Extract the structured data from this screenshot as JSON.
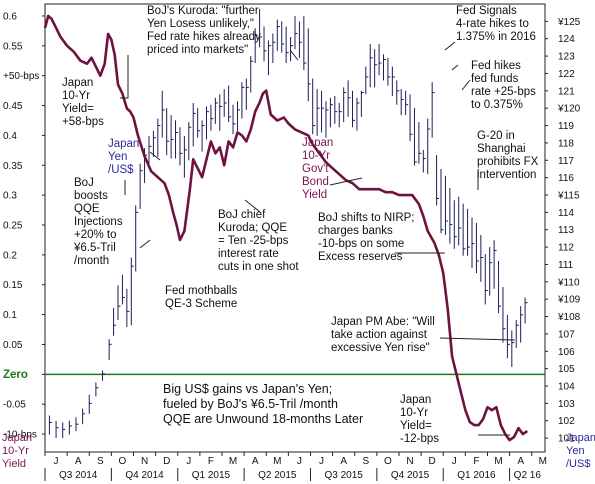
{
  "chart_data": {
    "type": "line",
    "left_axis": {
      "title_lines": [
        "Japan",
        "10-Yr",
        "Yield"
      ],
      "range": [
        -0.13,
        0.62
      ],
      "ticks": [
        {
          "v": 0.6,
          "t": "0.6"
        },
        {
          "v": 0.55,
          "t": "0.55"
        },
        {
          "v": 0.5,
          "t": "+50-bps"
        },
        {
          "v": 0.45,
          "t": "0.45"
        },
        {
          "v": 0.4,
          "t": "0.4"
        },
        {
          "v": 0.35,
          "t": "0.35"
        },
        {
          "v": 0.3,
          "t": "0.3"
        },
        {
          "v": 0.25,
          "t": "0.25"
        },
        {
          "v": 0.2,
          "t": "0.2"
        },
        {
          "v": 0.15,
          "t": "0.15"
        },
        {
          "v": 0.1,
          "t": "0.1"
        },
        {
          "v": 0.05,
          "t": "0.05"
        },
        {
          "v": 0.0,
          "t": "Zero"
        },
        {
          "v": -0.05,
          "t": "-0.05"
        },
        {
          "v": -0.1,
          "t": "-10-bps"
        }
      ],
      "zero_label": "Zero",
      "zero_color": "#1a7a1a"
    },
    "right_axis": {
      "title_lines": [
        "Japan",
        "Yen",
        "/US$"
      ],
      "range": [
        100.2,
        126.0
      ],
      "ticks": [
        {
          "v": 125,
          "t": "¥125"
        },
        {
          "v": 124,
          "t": "124"
        },
        {
          "v": 123,
          "t": "123"
        },
        {
          "v": 122,
          "t": "122"
        },
        {
          "v": 121,
          "t": "121"
        },
        {
          "v": 120,
          "t": "¥120"
        },
        {
          "v": 119,
          "t": "119"
        },
        {
          "v": 118,
          "t": "118"
        },
        {
          "v": 117,
          "t": "117"
        },
        {
          "v": 116,
          "t": "116"
        },
        {
          "v": 115,
          "t": "¥115"
        },
        {
          "v": 114,
          "t": "114"
        },
        {
          "v": 113,
          "t": "113"
        },
        {
          "v": 112,
          "t": "112"
        },
        {
          "v": 111,
          "t": "111"
        },
        {
          "v": 110,
          "t": "¥110"
        },
        {
          "v": 109,
          "t": "¥109"
        },
        {
          "v": 108,
          "t": "¥108"
        },
        {
          "v": 107,
          "t": "107"
        },
        {
          "v": 106,
          "t": "106"
        },
        {
          "v": 105,
          "t": "105"
        },
        {
          "v": 104,
          "t": "104"
        },
        {
          "v": 103,
          "t": "103"
        },
        {
          "v": 102,
          "t": "102"
        },
        {
          "v": 101,
          "t": "101"
        }
      ]
    },
    "months": [
      "J",
      "A",
      "S",
      "O",
      "N",
      "D",
      "J",
      "F",
      "M",
      "A",
      "M",
      "J",
      "J",
      "A",
      "S",
      "O",
      "N",
      "D",
      "J",
      "F",
      "M",
      "A",
      "M"
    ],
    "quarters": [
      {
        "label": "Q3 2014",
        "start": 0,
        "end": 3
      },
      {
        "label": "Q4 2014",
        "start": 3,
        "end": 6
      },
      {
        "label": "Q1 2015",
        "start": 6,
        "end": 9
      },
      {
        "label": "Q2 2015",
        "start": 9,
        "end": 12
      },
      {
        "label": "Q3 2015",
        "start": 12,
        "end": 15
      },
      {
        "label": "Q4 2015",
        "start": 15,
        "end": 18
      },
      {
        "label": "Q1 2016",
        "start": 18,
        "end": 21
      },
      {
        "label": "Q2 16",
        "start": 21,
        "end": 22.6
      }
    ],
    "series": [
      {
        "name": "Japan 10-Yr Gov't Bond Yield",
        "axis": "left",
        "color": "#6e1240",
        "x": [
          0,
          0.15,
          0.3,
          0.5,
          0.7,
          1.0,
          1.3,
          1.6,
          1.9,
          2.1,
          2.3,
          2.5,
          2.7,
          2.85,
          3.0,
          3.15,
          3.3,
          3.5,
          3.7,
          3.85,
          4.0,
          4.2,
          4.5,
          4.8,
          5.1,
          5.4,
          5.6,
          5.8,
          5.95,
          6.1,
          6.3,
          6.55,
          6.7,
          6.9,
          7.1,
          7.3,
          7.5,
          7.7,
          7.9,
          8.1,
          8.3,
          8.5,
          8.7,
          8.9,
          9.1,
          9.3,
          9.5,
          9.7,
          9.85,
          10.0,
          10.2,
          10.5,
          10.8,
          11.0,
          11.3,
          11.6,
          11.9,
          12.1,
          12.4,
          12.7,
          13.0,
          13.3,
          13.6,
          13.9,
          14.2,
          14.5,
          14.8,
          15.1,
          15.4,
          15.7,
          16.0,
          16.3,
          16.6,
          16.9,
          17.1,
          17.3,
          17.6,
          17.8,
          18.0,
          18.2,
          18.4,
          18.6,
          18.8,
          19.0,
          19.2,
          19.4,
          19.6,
          19.8,
          20.0,
          20.2,
          20.4,
          20.6,
          20.8,
          21.0,
          21.2,
          21.4,
          21.6,
          21.8
        ],
        "y": [
          0.58,
          0.6,
          0.595,
          0.58,
          0.565,
          0.55,
          0.54,
          0.525,
          0.52,
          0.53,
          0.515,
          0.5,
          0.52,
          0.57,
          0.56,
          0.535,
          0.485,
          0.47,
          0.445,
          0.44,
          0.43,
          0.4,
          0.365,
          0.34,
          0.33,
          0.32,
          0.3,
          0.27,
          0.25,
          0.225,
          0.24,
          0.31,
          0.36,
          0.345,
          0.33,
          0.36,
          0.39,
          0.37,
          0.38,
          0.35,
          0.39,
          0.38,
          0.405,
          0.4,
          0.39,
          0.41,
          0.44,
          0.455,
          0.47,
          0.475,
          0.435,
          0.425,
          0.43,
          0.42,
          0.41,
          0.405,
          0.4,
          0.385,
          0.37,
          0.355,
          0.345,
          0.335,
          0.325,
          0.32,
          0.31,
          0.31,
          0.31,
          0.31,
          0.305,
          0.305,
          0.3,
          0.3,
          0.3,
          0.285,
          0.265,
          0.24,
          0.22,
          0.2,
          0.17,
          0.11,
          0.03,
          0.0,
          -0.03,
          -0.06,
          -0.08,
          -0.085,
          -0.085,
          -0.075,
          -0.055,
          -0.06,
          -0.055,
          -0.085,
          -0.1,
          -0.11,
          -0.105,
          -0.09,
          -0.1,
          -0.095
        ]
      },
      {
        "name": "Yen/US$",
        "axis": "right",
        "type": "hlc",
        "color": "#1c1c5a",
        "x": [
          0.2,
          0.5,
          0.8,
          1.1,
          1.4,
          1.7,
          2.0,
          2.3,
          2.6,
          2.9,
          3.1,
          3.3,
          3.5,
          3.7,
          3.9,
          4.1,
          4.3,
          4.5,
          4.7,
          4.9,
          5.1,
          5.3,
          5.5,
          5.7,
          5.9,
          6.1,
          6.3,
          6.5,
          6.7,
          6.9,
          7.1,
          7.3,
          7.5,
          7.7,
          7.9,
          8.1,
          8.3,
          8.5,
          8.7,
          8.9,
          9.1,
          9.3,
          9.5,
          9.7,
          9.9,
          10.1,
          10.3,
          10.5,
          10.7,
          10.9,
          11.1,
          11.3,
          11.5,
          11.7,
          11.9,
          12.1,
          12.3,
          12.5,
          12.7,
          12.9,
          13.1,
          13.3,
          13.5,
          13.7,
          13.9,
          14.1,
          14.3,
          14.5,
          14.7,
          14.9,
          15.1,
          15.3,
          15.5,
          15.7,
          15.9,
          16.1,
          16.3,
          16.5,
          16.7,
          16.9,
          17.1,
          17.3,
          17.5,
          17.7,
          17.9,
          18.1,
          18.3,
          18.5,
          18.7,
          18.9,
          19.1,
          19.3,
          19.5,
          19.7,
          19.9,
          20.1,
          20.3,
          20.5,
          20.7,
          20.9,
          21.1,
          21.3,
          21.5,
          21.7
        ],
        "high": [
          102.3,
          102.0,
          101.9,
          102.0,
          102.2,
          102.7,
          103.5,
          104.2,
          104.9,
          106.7,
          108.5,
          109.8,
          110.4,
          109.6,
          111.4,
          114.4,
          116.8,
          117.7,
          118.4,
          118.7,
          119.4,
          121.0,
          120.0,
          119.6,
          119.3,
          118.9,
          118.4,
          119.2,
          120.3,
          120.0,
          119.3,
          120.1,
          120.2,
          120.6,
          120.8,
          121.1,
          121.3,
          120.2,
          120.4,
          121.5,
          121.7,
          123.0,
          124.6,
          125.7,
          124.7,
          123.9,
          124.3,
          125.1,
          125.0,
          124.7,
          124.1,
          125.3,
          125.0,
          125.3,
          124.6,
          121.7,
          121.1,
          121.0,
          120.4,
          120.6,
          120.7,
          120.3,
          121.2,
          121.6,
          121.0,
          120.6,
          121.0,
          122.4,
          123.7,
          123.4,
          123.7,
          123.1,
          122.9,
          122.4,
          121.6,
          121.1,
          121.0,
          120.8,
          120.0,
          119.2,
          117.6,
          119.4,
          121.5,
          117.3,
          116.5,
          116.1,
          115.4,
          114.7,
          114.9,
          114.5,
          114.2,
          113.7,
          113.4,
          112.7,
          111.6,
          112.0,
          112.4,
          111.2,
          109.7,
          108.1,
          107.2,
          107.8,
          108.6,
          109.1
        ],
        "low": [
          101.2,
          101.0,
          101.0,
          101.2,
          101.4,
          101.8,
          102.4,
          103.4,
          104.3,
          105.5,
          106.9,
          107.8,
          108.7,
          107.4,
          107.5,
          110.6,
          114.2,
          115.7,
          116.6,
          117.2,
          117.2,
          118.3,
          117.3,
          117.1,
          117.1,
          116.7,
          116.0,
          117.0,
          117.8,
          118.3,
          117.5,
          118.2,
          118.7,
          119.1,
          118.7,
          119.5,
          119.2,
          118.5,
          118.7,
          119.4,
          119.9,
          120.9,
          122.6,
          123.5,
          122.7,
          121.9,
          122.6,
          123.3,
          123.2,
          122.6,
          122.7,
          123.4,
          122.9,
          122.2,
          120.4,
          118.5,
          118.4,
          118.6,
          118.3,
          118.9,
          119.1,
          118.9,
          119.2,
          119.5,
          118.9,
          118.7,
          119.5,
          120.8,
          121.2,
          121.2,
          121.9,
          121.6,
          121.3,
          120.7,
          120.2,
          119.6,
          119.6,
          118.1,
          116.7,
          116.8,
          116.3,
          116.2,
          118.3,
          114.4,
          112.8,
          112.7,
          112.2,
          111.9,
          112.1,
          111.5,
          111.5,
          110.8,
          110.5,
          110.0,
          108.7,
          109.2,
          109.6,
          108.2,
          106.5,
          105.6,
          105.1,
          106.2,
          106.5,
          107.6
        ],
        "close": [
          101.9,
          101.6,
          101.5,
          101.7,
          101.8,
          102.4,
          103.0,
          103.9,
          104.7,
          106.4,
          107.5,
          108.6,
          109.1,
          108.3,
          110.9,
          114.0,
          116.4,
          117.3,
          117.8,
          118.3,
          119.0,
          119.9,
          118.1,
          118.2,
          118.6,
          117.4,
          117.6,
          118.9,
          119.7,
          118.7,
          119.0,
          119.8,
          119.4,
          120.3,
          120.1,
          120.3,
          119.5,
          119.1,
          119.9,
          121.2,
          121.2,
          122.7,
          124.2,
          124.1,
          123.3,
          123.6,
          123.8,
          124.7,
          123.7,
          123.2,
          123.6,
          124.3,
          123.8,
          122.6,
          121.4,
          119.0,
          120.0,
          120.0,
          119.9,
          120.2,
          119.8,
          119.8,
          120.9,
          120.6,
          119.3,
          120.3,
          120.9,
          121.8,
          122.9,
          122.5,
          122.6,
          122.8,
          121.8,
          121.8,
          121.0,
          120.5,
          120.2,
          118.5,
          116.9,
          117.4,
          117.1,
          118.8,
          120.9,
          114.8,
          113.0,
          113.5,
          113.3,
          112.6,
          113.1,
          111.9,
          112.0,
          112.2,
          111.2,
          111.4,
          109.5,
          111.1,
          111.8,
          108.6,
          107.3,
          106.4,
          106.5,
          107.5,
          108.1,
          108.8
        ]
      }
    ],
    "annotations": [
      {
        "id": "kuroda1",
        "lines": [
          "BoJ's Kuroda: \"further",
          "Yen Losess unlikely,\"",
          "Fed rate hikes already",
          "priced into markets\""
        ],
        "style": "ann"
      },
      {
        "id": "fed-signals",
        "lines": [
          "Fed Signals",
          "4-rate hikes to",
          "1.375% in 2016"
        ],
        "style": "ann"
      },
      {
        "id": "fed-hikes",
        "lines": [
          "Fed hikes",
          "fed funds",
          "rate +25-bps",
          "to 0.375%"
        ],
        "style": "ann"
      },
      {
        "id": "jp10yr-a",
        "lines": [
          "Japan",
          "10-Yr",
          "Yield=",
          "+58-bps"
        ],
        "style": "ann"
      },
      {
        "id": "yen-label",
        "lines": [
          "Japan",
          "Yen",
          "/US$"
        ],
        "style": "ann-blue"
      },
      {
        "id": "jgb-label",
        "lines": [
          "Japan",
          "10-Yr",
          "Gov't",
          "Bond",
          "Yield"
        ],
        "style": "ann-maroon"
      },
      {
        "id": "g20",
        "lines": [
          "G-20 in",
          "Shanghai",
          "prohibits FX",
          "intervention"
        ],
        "style": "ann"
      },
      {
        "id": "boj-qqe",
        "lines": [
          "BoJ",
          "boosts",
          "QQE",
          "Injections",
          "+20% to",
          "¥6.5-Tril",
          "/month"
        ],
        "style": "ann"
      },
      {
        "id": "kuroda2",
        "lines": [
          "BoJ chief",
          "Kuroda; QQE",
          "= Ten -25-bps",
          "interest rate",
          "cuts in one shot"
        ],
        "style": "ann"
      },
      {
        "id": "nirp",
        "lines": [
          "BoJ shifts to NIRP;",
          "charges banks",
          "-10-bps on some",
          "Excess reserves"
        ],
        "style": "ann"
      },
      {
        "id": "qe3",
        "lines": [
          "Fed mothballs",
          "QE-3 Scheme"
        ],
        "style": "ann"
      },
      {
        "id": "abe",
        "lines": [
          "Japan PM Abe: \"Will",
          "take action against",
          "excessive Yen rise\""
        ],
        "style": "ann"
      },
      {
        "id": "big",
        "lines": [
          "Big US$ gains vs Japan's Yen;",
          "fueled by BoJ's ¥6.5-Tril /month",
          "QQE are Unwound 18-months Later"
        ],
        "style": "big"
      },
      {
        "id": "jp10yr-b",
        "lines": [
          "Japan",
          "10-Yr",
          "Yield=",
          "-12-bps"
        ],
        "style": "ann"
      }
    ],
    "grid": false
  }
}
